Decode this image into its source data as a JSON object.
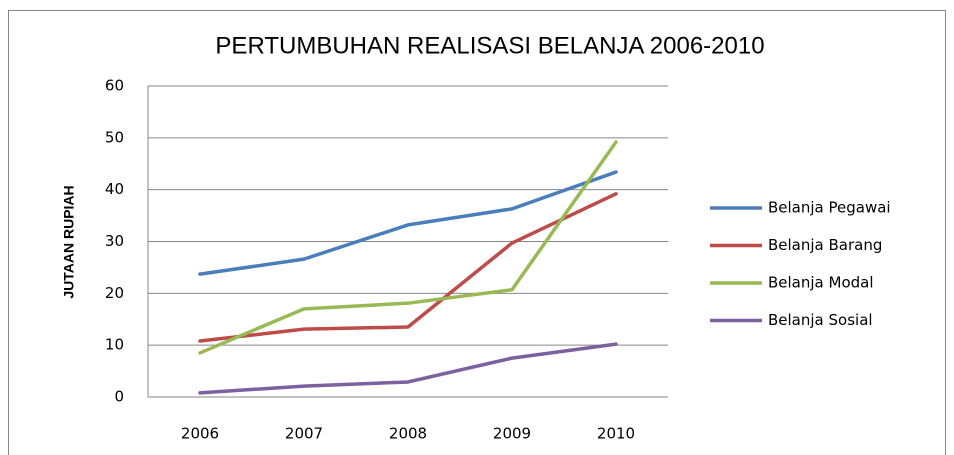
{
  "chart_data": {
    "type": "line",
    "title": "PERTUMBUHAN REALISASI BELANJA 2006-2010",
    "y_label": "JUTAAN RUPIAH",
    "categories": [
      "2006",
      "2007",
      "2008",
      "2009",
      "2010"
    ],
    "series": [
      {
        "name": "Belanja Pegawai",
        "color": "#4a7ebb",
        "values": [
          23.7,
          26.6,
          33.2,
          36.3,
          43.4
        ]
      },
      {
        "name": "Belanja Barang",
        "color": "#be4b48",
        "values": [
          10.8,
          13.1,
          13.5,
          29.7,
          39.2
        ]
      },
      {
        "name": "Belanja Modal",
        "color": "#98b954",
        "values": [
          8.5,
          17,
          18.1,
          20.7,
          49.2
        ]
      },
      {
        "name": "Belanja Sosial",
        "color": "#7d60a0",
        "values": [
          0.8,
          2.1,
          2.9,
          7.5,
          10.2
        ]
      }
    ],
    "ylim": [
      0,
      60
    ],
    "yticks": [
      0,
      10,
      20,
      30,
      40,
      50,
      60
    ],
    "grid": true,
    "legend": "right"
  }
}
